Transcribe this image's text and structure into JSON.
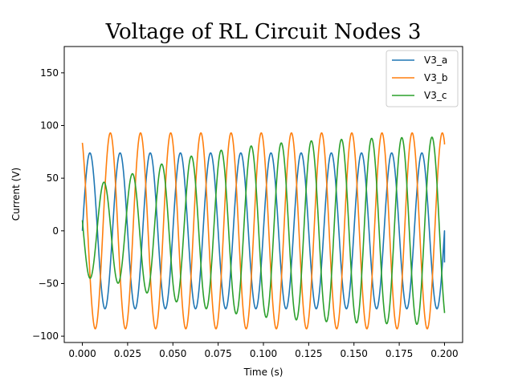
{
  "chart_data": {
    "type": "line",
    "title": "Voltage of RL Circuit Nodes 3",
    "xlabel": "Time (s)",
    "ylabel": "Current (V)",
    "xlim": [
      -0.01,
      0.21
    ],
    "ylim": [
      -106,
      175
    ],
    "xticks": [
      0.0,
      0.025,
      0.05,
      0.075,
      0.1,
      0.125,
      0.15,
      0.175,
      0.2
    ],
    "xtick_labels": [
      "0.000",
      "0.025",
      "0.050",
      "0.075",
      "0.100",
      "0.125",
      "0.150",
      "0.175",
      "0.200"
    ],
    "yticks": [
      -100,
      -50,
      0,
      50,
      100,
      150
    ],
    "ytick_labels": [
      "−100",
      "−50",
      "0",
      "50",
      "100",
      "150"
    ],
    "grid": false,
    "legend_position": "top-right",
    "x_start": 0.0,
    "x_end": 0.2,
    "series": [
      {
        "name": "V3_a",
        "color": "#1f77b4",
        "model": {
          "steady_amp": 74,
          "steady_phase_deg": 0,
          "transient_amp": 0,
          "transient_phase_deg": 0,
          "decay_s": 0.05
        },
        "end_value": -30
      },
      {
        "name": "V3_b",
        "color": "#ff7f0e",
        "model": {
          "steady_amp": 93,
          "steady_phase_deg": 116,
          "transient_amp": 0,
          "transient_phase_deg": 0,
          "decay_s": 0.05
        },
        "end_value": 82
      },
      {
        "name": "V3_c",
        "color": "#2ca02c",
        "model": {
          "steady_amp": 90,
          "steady_phase_deg": -120,
          "transient_amp": 88,
          "transient_phase_deg": 90,
          "decay_s": 0.045
        },
        "end_value": -78
      }
    ],
    "frequency_hz": 60
  }
}
